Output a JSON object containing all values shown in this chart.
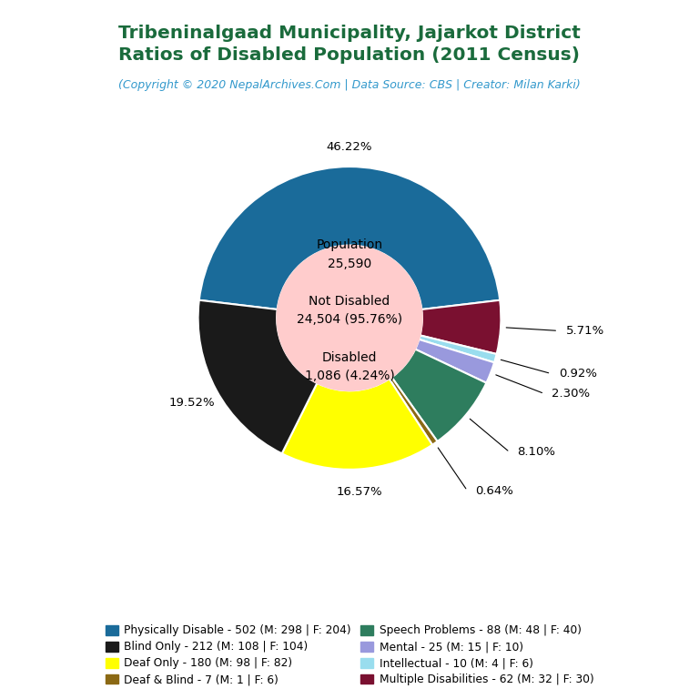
{
  "title_line1": "Tribeninalgaad Municipality, Jajarkot District",
  "title_line2": "Ratios of Disabled Population (2011 Census)",
  "subtitle": "(Copyright © 2020 NepalArchives.Com | Data Source: CBS | Creator: Milan Karki)",
  "title_color": "#1a6b3c",
  "subtitle_color": "#3399cc",
  "center_circle_color": "#ffcccc",
  "total_population": 25590,
  "not_disabled": 24504,
  "disabled": 1086,
  "slices": [
    {
      "label": "Physically Disable - 502 (M: 298 | F: 204)",
      "value": 502,
      "pct": 46.22,
      "color": "#1a6b9a"
    },
    {
      "label": "Multiple Disabilities - 62 (M: 32 | F: 30)",
      "value": 62,
      "pct": 5.71,
      "color": "#7a1030"
    },
    {
      "label": "Intellectual - 10 (M: 4 | F: 6)",
      "value": 10,
      "pct": 0.92,
      "color": "#99ddee"
    },
    {
      "label": "Mental - 25 (M: 15 | F: 10)",
      "value": 25,
      "pct": 2.3,
      "color": "#9999dd"
    },
    {
      "label": "Speech Problems - 88 (M: 48 | F: 40)",
      "value": 88,
      "pct": 8.1,
      "color": "#2e7d5e"
    },
    {
      "label": "Deaf & Blind - 7 (M: 1 | F: 6)",
      "value": 7,
      "pct": 0.64,
      "color": "#8b6914"
    },
    {
      "label": "Deaf Only - 180 (M: 98 | F: 82)",
      "value": 180,
      "pct": 16.57,
      "color": "#ffff00"
    },
    {
      "label": "Blind Only - 212 (M: 108 | F: 104)",
      "value": 212,
      "pct": 19.52,
      "color": "#1a1a1a"
    }
  ],
  "legend_rows": [
    [
      0,
      7
    ],
    [
      6,
      5
    ],
    [
      3,
      1
    ],
    [
      2,
      4
    ]
  ],
  "legend_labels": [
    "Physically Disable - 502 (M: 298 | F: 204)",
    "Blind Only - 212 (M: 108 | F: 104)",
    "Deaf Only - 180 (M: 98 | F: 82)",
    "Deaf & Blind - 7 (M: 1 | F: 6)",
    "Speech Problems - 88 (M: 48 | F: 40)",
    "Mental - 25 (M: 15 | F: 10)",
    "Intellectual - 10 (M: 4 | F: 6)",
    "Multiple Disabilities - 62 (M: 32 | F: 30)"
  ],
  "legend_colors": [
    "#1a6b9a",
    "#1a1a1a",
    "#ffff00",
    "#8b6914",
    "#2e7d5e",
    "#9999dd",
    "#99ddee",
    "#7a1030"
  ]
}
